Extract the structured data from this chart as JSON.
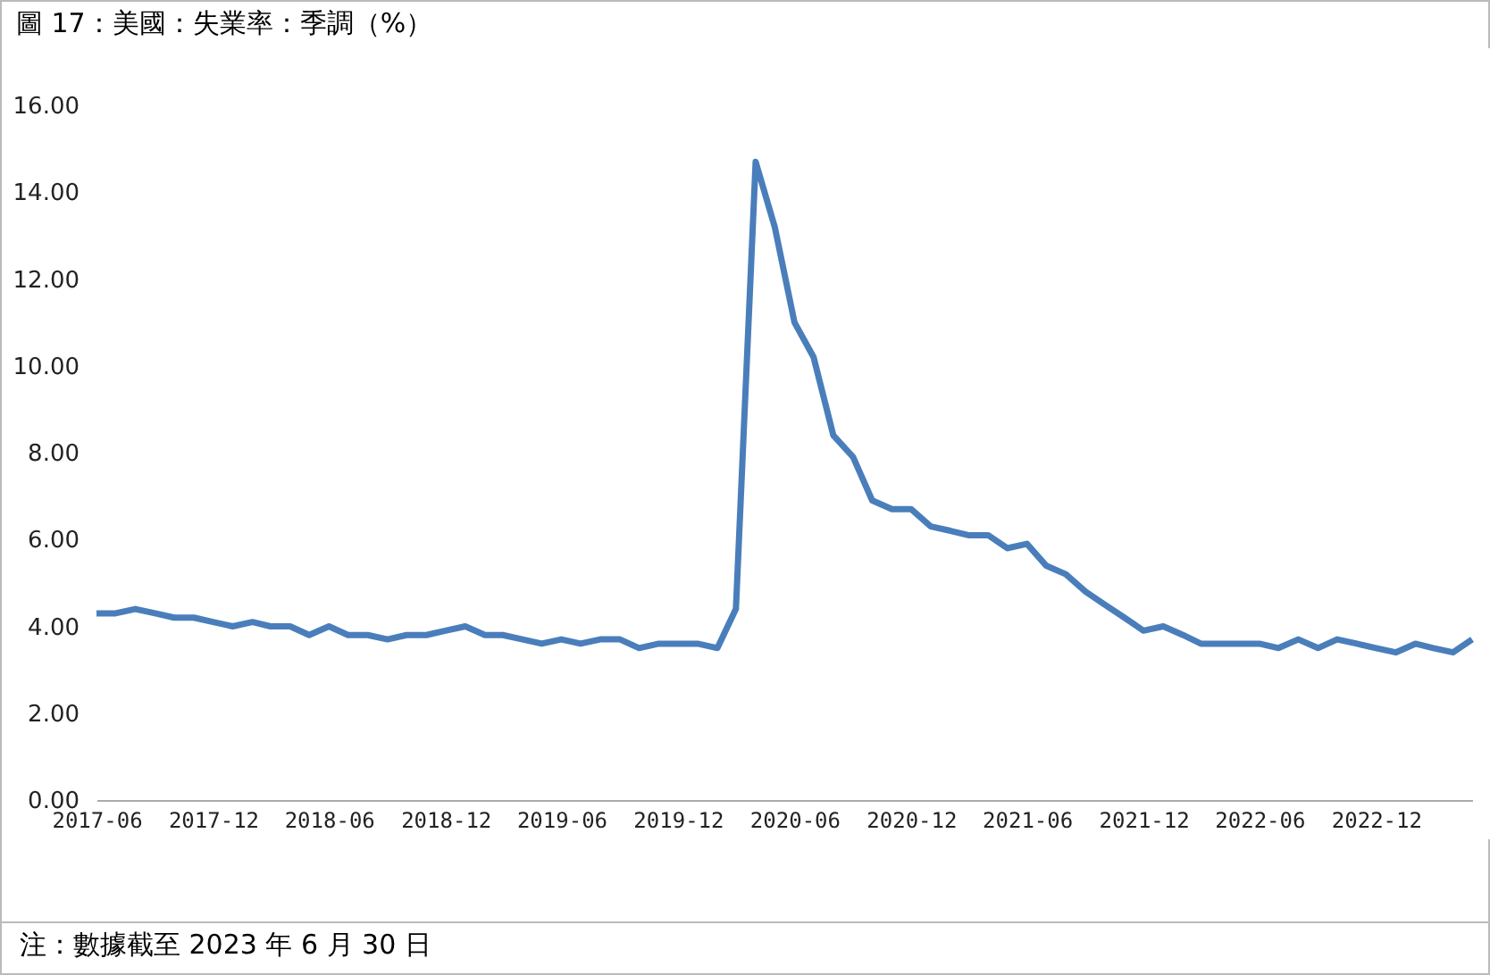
{
  "chart_data": {
    "type": "line",
    "title": "圖 17：美國：失業率：季調（%）",
    "annotations": [
      "注：數據截至 2023 年 6 月 30 日"
    ],
    "x": [
      "2017-06",
      "2017-07",
      "2017-08",
      "2017-09",
      "2017-10",
      "2017-11",
      "2017-12",
      "2018-01",
      "2018-02",
      "2018-03",
      "2018-04",
      "2018-05",
      "2018-06",
      "2018-07",
      "2018-08",
      "2018-09",
      "2018-10",
      "2018-11",
      "2018-12",
      "2019-01",
      "2019-02",
      "2019-03",
      "2019-04",
      "2019-05",
      "2019-06",
      "2019-07",
      "2019-08",
      "2019-09",
      "2019-10",
      "2019-11",
      "2019-12",
      "2020-01",
      "2020-02",
      "2020-03",
      "2020-04",
      "2020-05",
      "2020-06",
      "2020-07",
      "2020-08",
      "2020-09",
      "2020-10",
      "2020-11",
      "2020-12",
      "2021-01",
      "2021-02",
      "2021-03",
      "2021-04",
      "2021-05",
      "2021-06",
      "2021-07",
      "2021-08",
      "2021-09",
      "2021-10",
      "2021-11",
      "2021-12",
      "2022-01",
      "2022-02",
      "2022-03",
      "2022-04",
      "2022-05",
      "2022-06",
      "2022-07",
      "2022-08",
      "2022-09",
      "2022-10",
      "2022-11",
      "2022-12",
      "2023-01",
      "2023-02",
      "2023-03",
      "2023-04",
      "2023-05"
    ],
    "series": [
      {
        "color": "#4a7ebb",
        "values": [
          4.3,
          4.3,
          4.4,
          4.3,
          4.2,
          4.2,
          4.1,
          4.0,
          4.1,
          4.0,
          4.0,
          3.8,
          4.0,
          3.8,
          3.8,
          3.7,
          3.8,
          3.8,
          3.9,
          4.0,
          3.8,
          3.8,
          3.7,
          3.6,
          3.7,
          3.6,
          3.7,
          3.7,
          3.5,
          3.6,
          3.6,
          3.6,
          3.5,
          4.4,
          14.7,
          13.2,
          11.0,
          10.2,
          8.4,
          7.9,
          6.9,
          6.7,
          6.7,
          6.3,
          6.2,
          6.1,
          6.1,
          5.8,
          5.9,
          5.4,
          5.2,
          4.8,
          4.5,
          4.2,
          3.9,
          4.0,
          3.8,
          3.6,
          3.6,
          3.6,
          3.6,
          3.5,
          3.7,
          3.5,
          3.7,
          3.6,
          3.5,
          3.4,
          3.6,
          3.5,
          3.4,
          3.7
        ]
      }
    ],
    "xlim": [
      "2017-06",
      "2023-05"
    ],
    "xticks": [
      "2017-06",
      "2017-12",
      "2018-06",
      "2018-12",
      "2019-06",
      "2019-12",
      "2020-06",
      "2020-12",
      "2021-06",
      "2021-12",
      "2022-06",
      "2022-12"
    ],
    "ylim": [
      0,
      16
    ],
    "yticks": [
      {
        "value": 0,
        "label": "0.00"
      },
      {
        "value": 2,
        "label": "2.00"
      },
      {
        "value": 4,
        "label": "4.00"
      },
      {
        "value": 6,
        "label": "6.00"
      },
      {
        "value": 8,
        "label": "8.00"
      },
      {
        "value": 10,
        "label": "10.00"
      },
      {
        "value": 12,
        "label": "12.00"
      },
      {
        "value": 14,
        "label": "14.00"
      },
      {
        "value": 16,
        "label": "16.00"
      }
    ],
    "grid": false,
    "marker": "none",
    "line_style": "solid"
  }
}
